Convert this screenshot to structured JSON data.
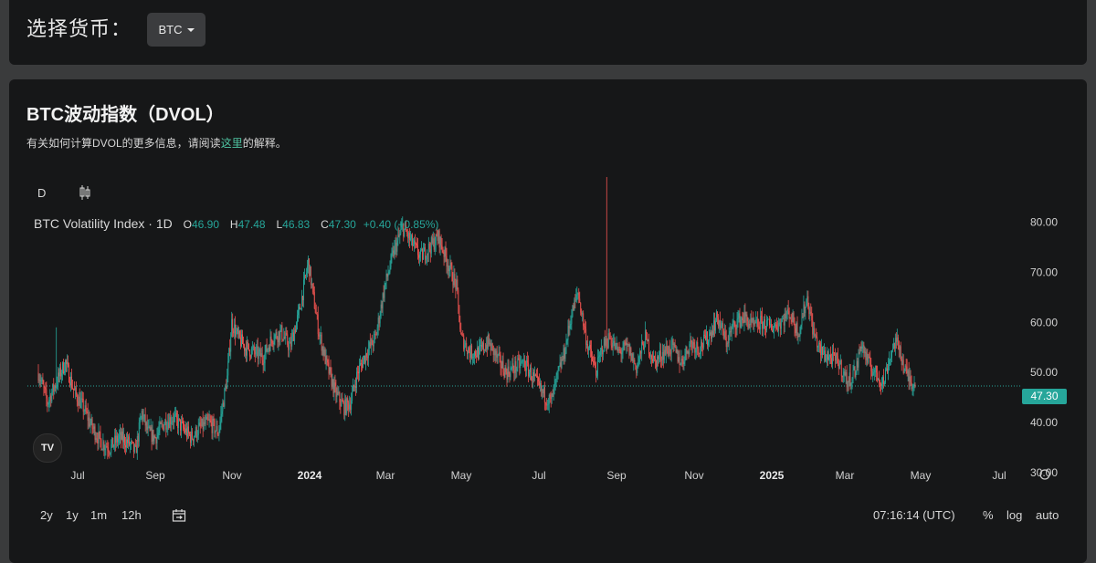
{
  "selector": {
    "label": "选择货币：",
    "value": "BTC"
  },
  "section": {
    "title": "BTC波动指数（DVOL）",
    "desc_before": "有关如何计算DVOL的更多信息，请阅读",
    "desc_link": "这里",
    "desc_after": "的解释。"
  },
  "toolbar": {
    "interval": "D",
    "chart_type_icon": "candlestick-icon"
  },
  "legend": {
    "name": "BTC Volatility Index · 1D",
    "o_label": "O",
    "o": "46.90",
    "h_label": "H",
    "h": "47.48",
    "l_label": "L",
    "l": "46.83",
    "c_label": "C",
    "c": "47.30",
    "change": "+0.40 (+0.85%)"
  },
  "price_tag": "47.30",
  "bottom": {
    "ranges": [
      "2y",
      "1y",
      "1m",
      "12h"
    ],
    "time": "07:16:14 (UTC)",
    "percent": "%",
    "log": "log",
    "auto": "auto"
  },
  "colors": {
    "up": "#26a69a",
    "down": "#ef5350",
    "background": "#161718"
  },
  "chart_data": {
    "type": "candlestick",
    "title": "BTC Volatility Index · 1D",
    "y_ticks": [
      "80.00",
      "70.00",
      "60.00",
      "50.00",
      "40.00",
      "30.00"
    ],
    "ylim": [
      30,
      83
    ],
    "x_ticks": [
      "Jul",
      "Sep",
      "Nov",
      "2024",
      "Mar",
      "May",
      "Jul",
      "Sep",
      "Nov",
      "2025",
      "Mar",
      "May",
      "Jul"
    ],
    "x_bold": [
      "2024",
      "2025"
    ],
    "last_close": 47.3,
    "series": [
      {
        "name": "BTC Volatility Index",
        "keypoints": [
          [
            0,
            50
          ],
          [
            10,
            44
          ],
          [
            20,
            48
          ],
          [
            30,
            52
          ],
          [
            40,
            46
          ],
          [
            50,
            43
          ],
          [
            60,
            39
          ],
          [
            70,
            36
          ],
          [
            80,
            35
          ],
          [
            90,
            37
          ],
          [
            100,
            36
          ],
          [
            108,
            34
          ],
          [
            115,
            42
          ],
          [
            122,
            38
          ],
          [
            130,
            37
          ],
          [
            140,
            40
          ],
          [
            150,
            41
          ],
          [
            160,
            39
          ],
          [
            170,
            37
          ],
          [
            180,
            39
          ],
          [
            190,
            40
          ],
          [
            200,
            38
          ],
          [
            210,
            49
          ],
          [
            215,
            60
          ],
          [
            222,
            57
          ],
          [
            230,
            55
          ],
          [
            240,
            54
          ],
          [
            250,
            53
          ],
          [
            260,
            57
          ],
          [
            270,
            58
          ],
          [
            280,
            55
          ],
          [
            290,
            62
          ],
          [
            300,
            72
          ],
          [
            305,
            66
          ],
          [
            312,
            58
          ],
          [
            320,
            52
          ],
          [
            330,
            46
          ],
          [
            340,
            43
          ],
          [
            347,
            44
          ],
          [
            355,
            50
          ],
          [
            365,
            54
          ],
          [
            375,
            57
          ],
          [
            385,
            67
          ],
          [
            395,
            74
          ],
          [
            405,
            79
          ],
          [
            415,
            76
          ],
          [
            425,
            73
          ],
          [
            435,
            75
          ],
          [
            445,
            77
          ],
          [
            455,
            72
          ],
          [
            465,
            67
          ],
          [
            470,
            57
          ],
          [
            480,
            54
          ],
          [
            490,
            54
          ],
          [
            500,
            56
          ],
          [
            510,
            53
          ],
          [
            520,
            50
          ],
          [
            530,
            51
          ],
          [
            540,
            52
          ],
          [
            550,
            49
          ],
          [
            560,
            46
          ],
          [
            570,
            44
          ],
          [
            577,
            49
          ],
          [
            585,
            54
          ],
          [
            592,
            61
          ],
          [
            600,
            66
          ],
          [
            610,
            56
          ],
          [
            620,
            50
          ],
          [
            627,
            55
          ],
          [
            635,
            57
          ],
          [
            645,
            54
          ],
          [
            655,
            55
          ],
          [
            665,
            51
          ],
          [
            675,
            57
          ],
          [
            685,
            52
          ],
          [
            695,
            54
          ],
          [
            705,
            55
          ],
          [
            715,
            52
          ],
          [
            725,
            56
          ],
          [
            735,
            55
          ],
          [
            745,
            57
          ],
          [
            755,
            61
          ],
          [
            765,
            56
          ],
          [
            775,
            60
          ],
          [
            785,
            61
          ],
          [
            795,
            59
          ],
          [
            805,
            60
          ],
          [
            815,
            59
          ],
          [
            825,
            60
          ],
          [
            835,
            62
          ],
          [
            845,
            58
          ],
          [
            855,
            65
          ],
          [
            862,
            58
          ],
          [
            870,
            54
          ],
          [
            880,
            53
          ],
          [
            890,
            52
          ],
          [
            900,
            48
          ],
          [
            910,
            51
          ],
          [
            915,
            56
          ],
          [
            922,
            52
          ],
          [
            930,
            50
          ],
          [
            940,
            48
          ],
          [
            945,
            52
          ],
          [
            952,
            56
          ],
          [
            958,
            55
          ],
          [
            962,
            51
          ],
          [
            968,
            49
          ],
          [
            975,
            47.3
          ]
        ]
      }
    ]
  }
}
